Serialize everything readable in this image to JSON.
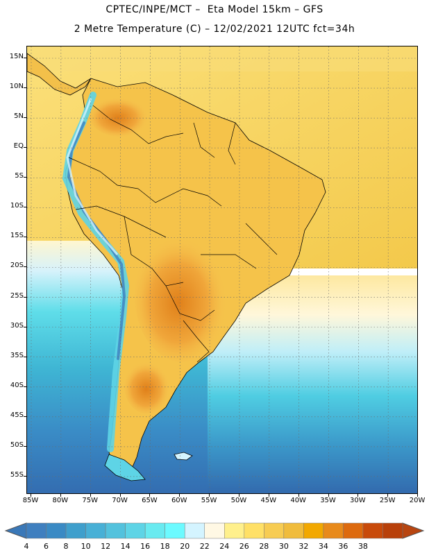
{
  "header": {
    "title_line1": "CPTEC/INPE/MCT –  Eta Model 15km – GFS",
    "title_line2": "2 Metre Temperature (C) – 12/02/2021 12UTC fct=34h"
  },
  "map": {
    "lat_labels": [
      "15N",
      "10N",
      "5N",
      "EQ",
      "5S",
      "10S",
      "15S",
      "20S",
      "25S",
      "30S",
      "35S",
      "40S",
      "45S",
      "50S",
      "55S"
    ],
    "lon_labels": [
      "85W",
      "80W",
      "75W",
      "70W",
      "65W",
      "60W",
      "55W",
      "50W",
      "45W",
      "40W",
      "35W",
      "30W",
      "25W",
      "20W"
    ]
  },
  "colorbar": {
    "labels": [
      "4",
      "6",
      "8",
      "10",
      "12",
      "14",
      "16",
      "18",
      "20",
      "22",
      "24",
      "26",
      "28",
      "30",
      "32",
      "34",
      "36",
      "38"
    ],
    "colors": [
      "#3f7fbf",
      "#3a8ac4",
      "#3f9fcc",
      "#48b0d6",
      "#53c2dd",
      "#5ed4e6",
      "#69eaf0",
      "#6cfaff",
      "#d4f4ff",
      "#fff8e4",
      "#fff08c",
      "#ffe066",
      "#f7cc52",
      "#f0bc3c",
      "#f2a800",
      "#e88a1a",
      "#dd6a0e",
      "#c84a0a",
      "#b8400a"
    ],
    "end_low_color": "#3a78b8",
    "end_high_color": "#b84510"
  }
}
